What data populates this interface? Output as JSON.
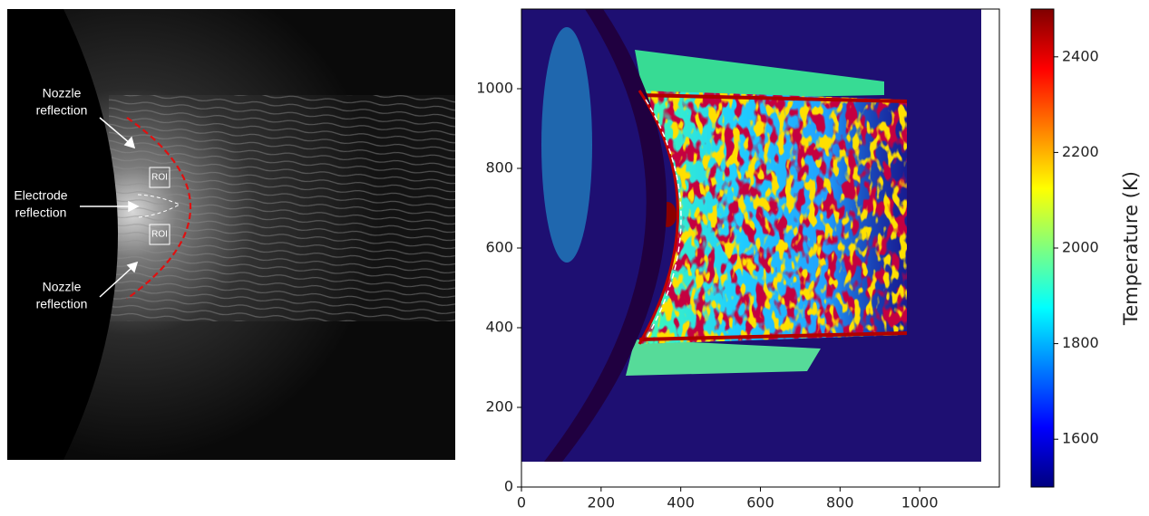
{
  "image_panel": {
    "annotations": [
      {
        "lines": [
          "Nozzle",
          "reflection"
        ]
      },
      {
        "lines": [
          "Electrode",
          "reflection"
        ]
      },
      {
        "lines": [
          "Nozzle",
          "reflection"
        ]
      }
    ],
    "roi_labels": [
      "ROI",
      "ROI"
    ]
  },
  "chart_data": {
    "type": "heatmap",
    "xlim": [
      0,
      1200
    ],
    "ylim": [
      0,
      1200
    ],
    "xticks": [
      0,
      200,
      400,
      600,
      800,
      1000
    ],
    "yticks": [
      0,
      200,
      400,
      600,
      800,
      1000
    ],
    "colorbar": {
      "label": "Temperature (K)",
      "clim": [
        1500,
        2500
      ],
      "ticks": [
        1600,
        1800,
        2000,
        2200,
        2400
      ],
      "colors": [
        "#00007f",
        "#0000ff",
        "#007fff",
        "#00ffff",
        "#7fff7f",
        "#ffff00",
        "#ff7f00",
        "#ff0000",
        "#7f0000"
      ]
    }
  }
}
